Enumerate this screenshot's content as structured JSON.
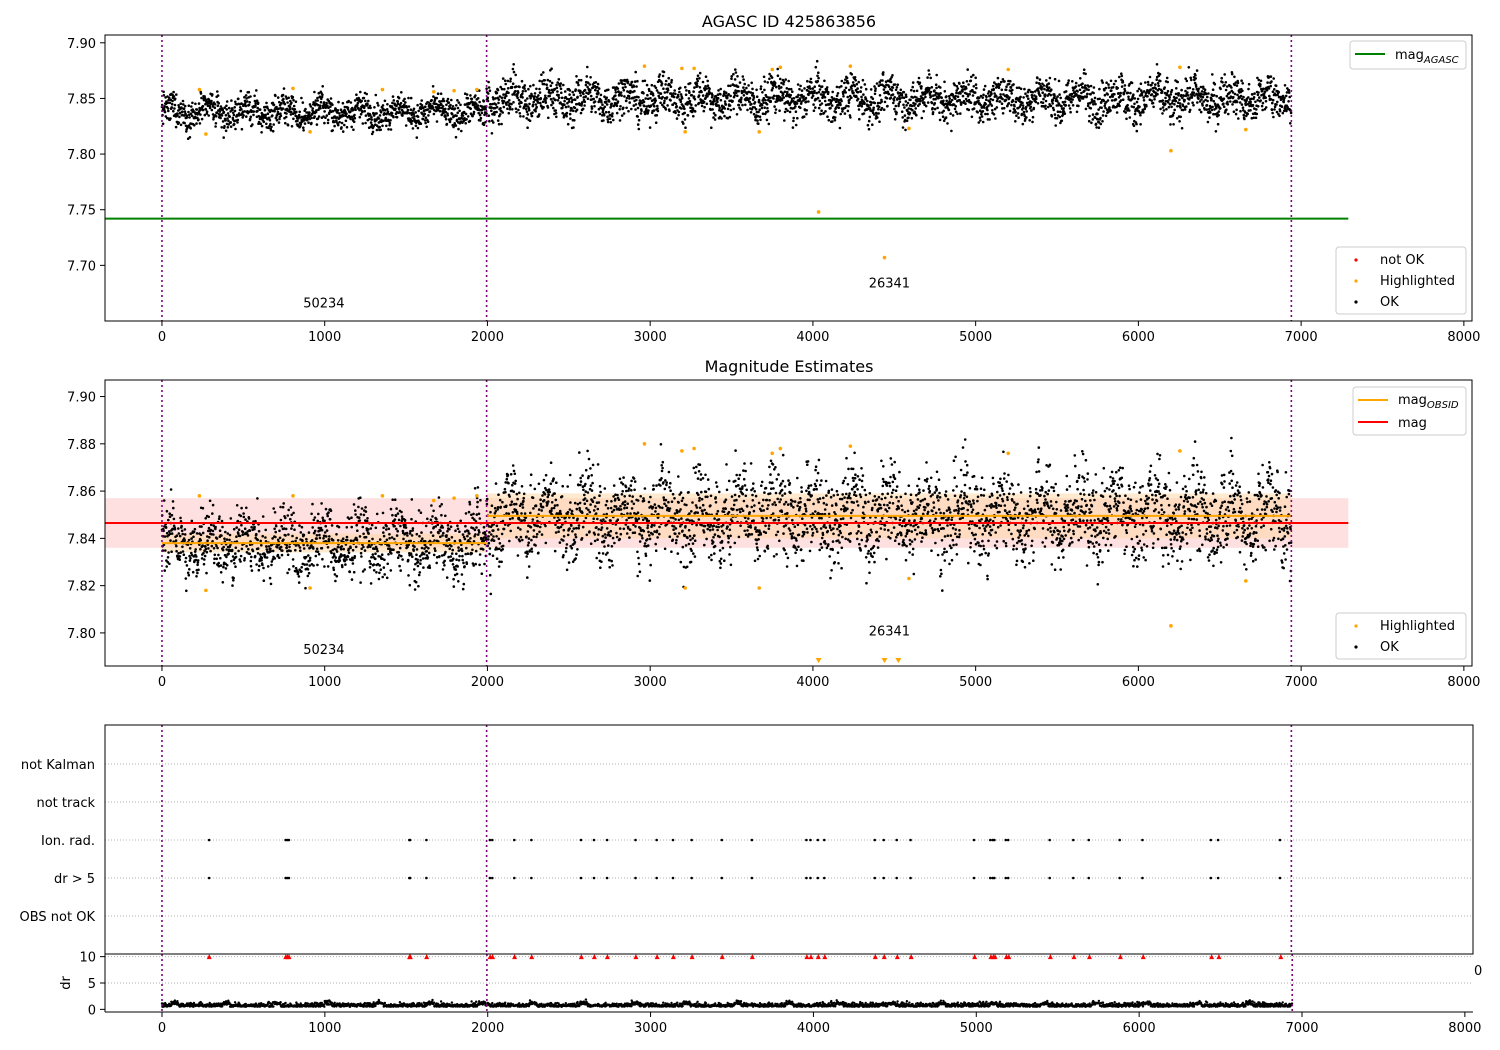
{
  "chart_data": [
    {
      "type": "scatter",
      "title": "AGASC ID 425863856",
      "xlim": [
        -350,
        8050
      ],
      "ylim": [
        7.65,
        7.907
      ],
      "xticks": [
        0,
        1000,
        2000,
        3000,
        4000,
        5000,
        6000,
        7000,
        8000
      ],
      "yticks": [
        7.7,
        7.75,
        7.8,
        7.85,
        7.9
      ],
      "ytick_labels": [
        "7.70",
        "7.75",
        "7.80",
        "7.85",
        "7.90"
      ],
      "obs_boundaries": [
        0,
        1995,
        6940
      ],
      "obsid_labels": [
        {
          "text": "50234",
          "x": 995,
          "y": 7.662
        },
        {
          "text": "26341",
          "x": 4470,
          "y": 7.68
        }
      ],
      "lines": [
        {
          "name": "mag_AGASC",
          "y": 7.742,
          "x_range": [
            -350,
            7290
          ],
          "color": "#008000"
        }
      ],
      "segment_bands": [
        {
          "x_range": [
            0,
            1995
          ],
          "center": 7.838,
          "spread": 0.012
        },
        {
          "x_range": [
            1995,
            6940
          ],
          "center": 7.85,
          "spread": 0.016
        }
      ],
      "highlighted_points": [
        {
          "x": 230,
          "y": 7.858
        },
        {
          "x": 270,
          "y": 7.818
        },
        {
          "x": 805,
          "y": 7.859
        },
        {
          "x": 910,
          "y": 7.82
        },
        {
          "x": 1355,
          "y": 7.858
        },
        {
          "x": 1670,
          "y": 7.856
        },
        {
          "x": 1795,
          "y": 7.857
        },
        {
          "x": 1935,
          "y": 7.858
        },
        {
          "x": 2965,
          "y": 7.879
        },
        {
          "x": 3195,
          "y": 7.877
        },
        {
          "x": 3215,
          "y": 7.82
        },
        {
          "x": 3270,
          "y": 7.877
        },
        {
          "x": 3670,
          "y": 7.82
        },
        {
          "x": 3750,
          "y": 7.876
        },
        {
          "x": 3800,
          "y": 7.878
        },
        {
          "x": 4035,
          "y": 7.748
        },
        {
          "x": 4230,
          "y": 7.879
        },
        {
          "x": 4440,
          "y": 7.707
        },
        {
          "x": 4590,
          "y": 7.823
        },
        {
          "x": 5200,
          "y": 7.876
        },
        {
          "x": 6200,
          "y": 7.803
        },
        {
          "x": 6255,
          "y": 7.878
        },
        {
          "x": 6660,
          "y": 7.822
        }
      ],
      "legend": {
        "lines": [
          {
            "label": "mag",
            "subscript": "AGASC",
            "color": "#008000"
          }
        ],
        "points": [
          {
            "label": "not OK",
            "color": "#ff0000"
          },
          {
            "label": "Highlighted",
            "color": "#ffa500"
          },
          {
            "label": "OK",
            "color": "#000000"
          }
        ]
      }
    },
    {
      "type": "scatter",
      "title": "Magnitude Estimates",
      "xlim": [
        -350,
        8050
      ],
      "ylim": [
        7.786,
        7.907
      ],
      "xticks": [
        0,
        1000,
        2000,
        3000,
        4000,
        5000,
        6000,
        7000,
        8000
      ],
      "yticks": [
        7.8,
        7.82,
        7.84,
        7.86,
        7.88,
        7.9
      ],
      "ytick_labels": [
        "7.80",
        "7.82",
        "7.84",
        "7.86",
        "7.88",
        "7.90"
      ],
      "obs_boundaries": [
        0,
        1995,
        6940
      ],
      "obsid_labels": [
        {
          "text": "50234",
          "x": 995,
          "y": 7.791
        },
        {
          "text": "26341",
          "x": 4470,
          "y": 7.799
        }
      ],
      "lines": [
        {
          "name": "mag",
          "y": 7.8465,
          "x_range": [
            -350,
            7290
          ],
          "color": "#ff0000"
        },
        {
          "name": "mag_OBSID_1",
          "y": 7.838,
          "x_range": [
            0,
            1995
          ],
          "color": "#ffa500"
        },
        {
          "name": "mag_OBSID_2",
          "y": 7.8495,
          "x_range": [
            1995,
            6940
          ],
          "color": "#ffa500"
        }
      ],
      "bands": [
        {
          "x_range": [
            -350,
            7290
          ],
          "y_range": [
            7.836,
            7.857
          ],
          "color": "#ffcccc"
        },
        {
          "x_range": [
            0,
            1995
          ],
          "y_range": [
            7.834,
            7.842
          ],
          "color": "#ffd9a8"
        },
        {
          "x_range": [
            1995,
            6940
          ],
          "y_range": [
            7.84,
            7.859
          ],
          "color": "#ffd9a8"
        }
      ],
      "segment_bands": [
        {
          "x_range": [
            0,
            1995
          ],
          "center": 7.838,
          "spread": 0.012
        },
        {
          "x_range": [
            1995,
            6940
          ],
          "center": 7.85,
          "spread": 0.016
        }
      ],
      "highlighted_points": [
        {
          "x": 230,
          "y": 7.858
        },
        {
          "x": 270,
          "y": 7.818
        },
        {
          "x": 805,
          "y": 7.858
        },
        {
          "x": 910,
          "y": 7.819
        },
        {
          "x": 1355,
          "y": 7.858
        },
        {
          "x": 1670,
          "y": 7.856
        },
        {
          "x": 1795,
          "y": 7.857
        },
        {
          "x": 1935,
          "y": 7.858
        },
        {
          "x": 2965,
          "y": 7.88
        },
        {
          "x": 3195,
          "y": 7.877
        },
        {
          "x": 3215,
          "y": 7.819
        },
        {
          "x": 3270,
          "y": 7.878
        },
        {
          "x": 3670,
          "y": 7.819
        },
        {
          "x": 3750,
          "y": 7.876
        },
        {
          "x": 3800,
          "y": 7.878
        },
        {
          "x": 4230,
          "y": 7.879
        },
        {
          "x": 4590,
          "y": 7.823
        },
        {
          "x": 5200,
          "y": 7.876
        },
        {
          "x": 6200,
          "y": 7.803
        },
        {
          "x": 6255,
          "y": 7.877
        },
        {
          "x": 6660,
          "y": 7.822
        }
      ],
      "offscale_markers": [
        4035,
        4440,
        4525
      ],
      "legend": {
        "lines": [
          {
            "label": "mag",
            "subscript": "OBSID",
            "color": "#ffa500"
          },
          {
            "label": "mag",
            "subscript": "",
            "color": "#ff0000"
          }
        ],
        "points": [
          {
            "label": "Highlighted",
            "color": "#ffa500"
          },
          {
            "label": "OK",
            "color": "#000000"
          }
        ]
      }
    },
    {
      "type": "scatter",
      "title": "",
      "xlim": [
        -350,
        8050
      ],
      "categories": [
        "not Kalman",
        "not track",
        "Ion. rad.",
        "dr > 5",
        "OBS not OK"
      ],
      "flag_events": [
        290,
        760,
        770,
        780,
        1520,
        1525,
        1625,
        2015,
        2030,
        2165,
        2270,
        2575,
        2655,
        2735,
        2910,
        3040,
        3140,
        3255,
        3440,
        3625,
        3960,
        3985,
        4030,
        4070,
        4380,
        4435,
        4515,
        4600,
        4990,
        5090,
        5105,
        5115,
        5185,
        5200,
        5455,
        5600,
        5695,
        5885,
        6025,
        6445,
        6490,
        6870
      ],
      "flagged_rows": [
        "Ion. rad.",
        "dr > 5"
      ],
      "obs_boundaries": [
        0,
        1995,
        6940
      ],
      "clipped_label": "0"
    },
    {
      "type": "scatter",
      "title": "",
      "ylabel": "dr",
      "xlim": [
        -350,
        8050
      ],
      "ylim": [
        -0.5,
        10.5
      ],
      "yticks": [
        0,
        5,
        10
      ],
      "xticks": [
        0,
        1000,
        2000,
        3000,
        4000,
        5000,
        6000,
        7000,
        8000
      ],
      "dr_typical": 0.5,
      "dr_flag_value": 10,
      "obs_boundaries": [
        0,
        1995,
        6940
      ]
    }
  ]
}
